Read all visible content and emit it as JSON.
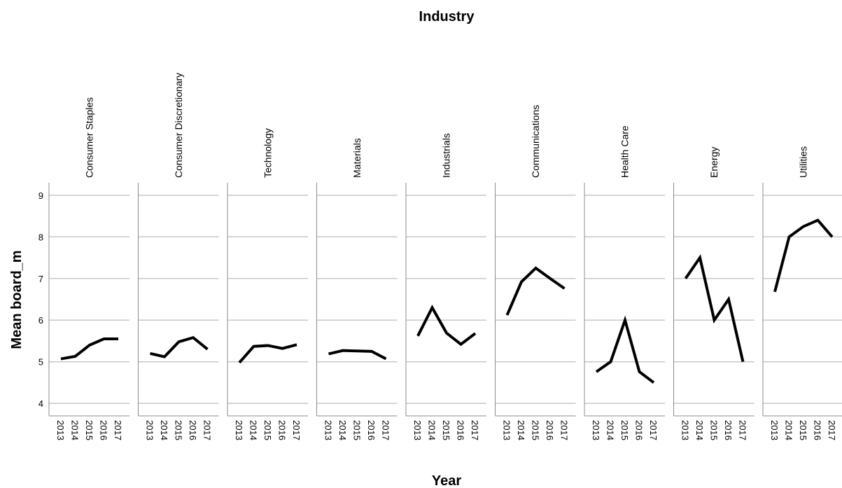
{
  "chart_data": {
    "type": "line",
    "title": "Industry",
    "xlabel": "Year",
    "ylabel": "Mean board_m",
    "ylim": [
      3.7,
      9.3
    ],
    "yticks": [
      4,
      5,
      6,
      7,
      8,
      9
    ],
    "x": [
      "2013",
      "2014",
      "2015",
      "2016",
      "2017"
    ],
    "grid": true,
    "panels": [
      {
        "name": "Consumer Staples",
        "values": [
          5.07,
          5.13,
          5.4,
          5.55,
          5.55
        ]
      },
      {
        "name": "Consumer Discretionary",
        "values": [
          5.2,
          5.12,
          5.48,
          5.58,
          5.3
        ]
      },
      {
        "name": "Technology",
        "values": [
          4.98,
          5.37,
          5.39,
          5.32,
          5.41
        ]
      },
      {
        "name": "Materials",
        "values": [
          5.19,
          5.27,
          5.26,
          5.25,
          5.07
        ]
      },
      {
        "name": "Industrials",
        "values": [
          5.62,
          6.3,
          5.69,
          5.42,
          5.68
        ]
      },
      {
        "name": "Communications",
        "values": [
          6.12,
          6.92,
          7.25,
          7.0,
          6.76
        ]
      },
      {
        "name": "Health Care",
        "values": [
          4.76,
          5.0,
          6.0,
          4.76,
          4.5
        ]
      },
      {
        "name": "Energy",
        "values": [
          7.0,
          7.5,
          6.0,
          6.5,
          5.0
        ]
      },
      {
        "name": "Utilities",
        "values": [
          6.68,
          8.0,
          8.25,
          8.4,
          8.0
        ]
      }
    ]
  }
}
